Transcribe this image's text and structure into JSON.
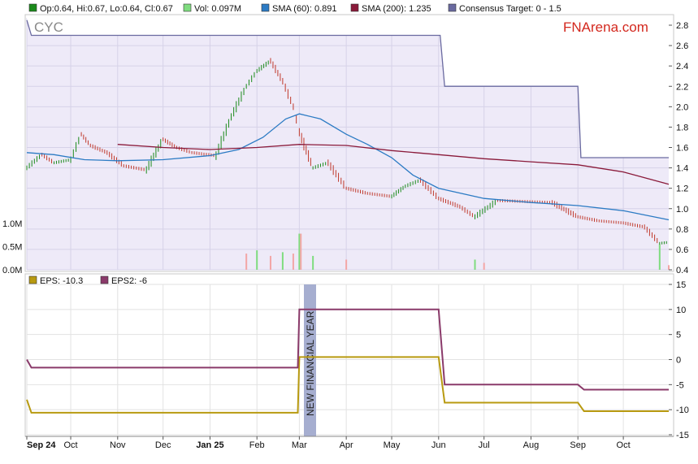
{
  "legend_top": [
    {
      "label": "Op:0.64, Hi:0.67, Lo:0.64, Cl:0.67",
      "color": "#1a8a1a"
    },
    {
      "label": "Vol: 0.097M",
      "color": "#7fdc7f"
    },
    {
      "label": "SMA (60): 0.891",
      "color": "#2c7bc4"
    },
    {
      "label": "SMA (200): 1.235",
      "color": "#8a1a3a"
    },
    {
      "label": "Consensus Target: 0 - 1.5",
      "color": "#6a6aa0"
    }
  ],
  "ticker": "CYC",
  "brand": "FNArena.com",
  "annotation": "NEW FINANCIAL YEAR",
  "legend_bottom": [
    {
      "label": "EPS: -10.3",
      "color": "#b89a10"
    },
    {
      "label": "EPS2: -6",
      "color": "#8a3a6a"
    }
  ],
  "chart_data": [
    {
      "type": "line",
      "title": "CYC",
      "x_axis": {
        "ticks": [
          "Sep 24",
          "Oct",
          "Nov",
          "Dec",
          "Jan 25",
          "Feb",
          "Mar",
          "Apr",
          "May",
          "Jun",
          "Jul",
          "Aug",
          "Sep",
          "Oct"
        ],
        "bold_ticks": [
          "Sep 24",
          "Jan 25"
        ],
        "range": [
          "2024-09-02",
          "2025-10-31"
        ]
      },
      "y_axis": {
        "ticks": [
          "2.8",
          "2.6",
          "2.4",
          "2.2",
          "2.0",
          "1.8",
          "1.6",
          "1.4",
          "1.2",
          "1.0",
          "0.8",
          "0.6",
          "0.4"
        ],
        "range": [
          0.4,
          2.8
        ]
      },
      "volume_axis": {
        "ticks": [
          "1.0M",
          "0.5M",
          "0.0M"
        ],
        "range": [
          0,
          1.0
        ]
      },
      "series": [
        {
          "name": "Consensus Target",
          "points": [
            [
              "2024-09-02",
              2.85
            ],
            [
              "2024-09-05",
              2.7
            ],
            [
              "2025-06-02",
              2.7
            ],
            [
              "2025-06-05",
              2.2
            ],
            [
              "2025-09-01",
              2.2
            ],
            [
              "2025-09-03",
              1.5
            ],
            [
              "2025-10-31",
              1.5
            ]
          ]
        },
        {
          "name": "SMA (60)",
          "points": [
            [
              "2024-09-02",
              1.55
            ],
            [
              "2024-09-20",
              1.53
            ],
            [
              "2024-10-10",
              1.48
            ],
            [
              "2024-11-01",
              1.47
            ],
            [
              "2024-12-01",
              1.48
            ],
            [
              "2025-01-01",
              1.52
            ],
            [
              "2025-01-20",
              1.58
            ],
            [
              "2025-02-05",
              1.7
            ],
            [
              "2025-02-20",
              1.88
            ],
            [
              "2025-03-01",
              1.93
            ],
            [
              "2025-03-15",
              1.88
            ],
            [
              "2025-04-01",
              1.73
            ],
            [
              "2025-04-15",
              1.63
            ],
            [
              "2025-05-01",
              1.5
            ],
            [
              "2025-05-15",
              1.33
            ],
            [
              "2025-06-01",
              1.2
            ],
            [
              "2025-07-01",
              1.1
            ],
            [
              "2025-08-01",
              1.06
            ],
            [
              "2025-09-01",
              1.03
            ],
            [
              "2025-10-01",
              0.98
            ],
            [
              "2025-10-31",
              0.89
            ]
          ]
        },
        {
          "name": "SMA (200)",
          "points": [
            [
              "2024-11-01",
              1.63
            ],
            [
              "2024-12-01",
              1.6
            ],
            [
              "2025-01-01",
              1.58
            ],
            [
              "2025-02-01",
              1.6
            ],
            [
              "2025-03-01",
              1.63
            ],
            [
              "2025-04-01",
              1.62
            ],
            [
              "2025-05-01",
              1.57
            ],
            [
              "2025-06-01",
              1.53
            ],
            [
              "2025-07-01",
              1.49
            ],
            [
              "2025-08-01",
              1.46
            ],
            [
              "2025-09-01",
              1.43
            ],
            [
              "2025-10-01",
              1.36
            ],
            [
              "2025-10-31",
              1.24
            ]
          ]
        },
        {
          "name": "Price",
          "points": [
            [
              "2024-09-02",
              1.4
            ],
            [
              "2024-09-12",
              1.53
            ],
            [
              "2024-09-20",
              1.45
            ],
            [
              "2024-10-01",
              1.48
            ],
            [
              "2024-10-08",
              1.73
            ],
            [
              "2024-10-14",
              1.62
            ],
            [
              "2024-10-25",
              1.55
            ],
            [
              "2024-11-05",
              1.42
            ],
            [
              "2024-11-20",
              1.38
            ],
            [
              "2024-12-01",
              1.68
            ],
            [
              "2024-12-10",
              1.6
            ],
            [
              "2024-12-20",
              1.55
            ],
            [
              "2025-01-05",
              1.52
            ],
            [
              "2025-01-15",
              1.9
            ],
            [
              "2025-01-25",
              2.2
            ],
            [
              "2025-02-01",
              2.35
            ],
            [
              "2025-02-10",
              2.45
            ],
            [
              "2025-02-18",
              2.25
            ],
            [
              "2025-02-25",
              2.0
            ],
            [
              "2025-03-01",
              1.75
            ],
            [
              "2025-03-10",
              1.4
            ],
            [
              "2025-03-20",
              1.45
            ],
            [
              "2025-04-01",
              1.2
            ],
            [
              "2025-04-15",
              1.15
            ],
            [
              "2025-05-01",
              1.12
            ],
            [
              "2025-05-10",
              1.22
            ],
            [
              "2025-05-20",
              1.28
            ],
            [
              "2025-06-01",
              1.1
            ],
            [
              "2025-06-15",
              1.02
            ],
            [
              "2025-06-25",
              0.92
            ],
            [
              "2025-07-10",
              1.08
            ],
            [
              "2025-08-15",
              1.06
            ],
            [
              "2025-09-01",
              0.92
            ],
            [
              "2025-09-15",
              0.88
            ],
            [
              "2025-10-01",
              0.86
            ],
            [
              "2025-10-15",
              0.82
            ],
            [
              "2025-10-25",
              0.66
            ],
            [
              "2025-10-31",
              0.67
            ]
          ]
        }
      ],
      "volume": [
        [
          "2025-01-25",
          0.35
        ],
        [
          "2025-02-01",
          0.42
        ],
        [
          "2025-02-10",
          0.3
        ],
        [
          "2025-02-18",
          0.38
        ],
        [
          "2025-02-25",
          0.35
        ],
        [
          "2025-03-01",
          0.78
        ],
        [
          "2025-03-02",
          0.78
        ],
        [
          "2025-03-10",
          0.3
        ],
        [
          "2025-04-01",
          0.22
        ],
        [
          "2025-06-25",
          0.22
        ],
        [
          "2025-07-01",
          0.15
        ],
        [
          "2025-10-25",
          0.55
        ],
        [
          "2025-10-31",
          0.1
        ]
      ]
    },
    {
      "type": "line",
      "y_axis": {
        "ticks": [
          "15",
          "10",
          "5",
          "0",
          "-5",
          "-10",
          "-15"
        ],
        "range": [
          -15,
          15
        ]
      },
      "series": [
        {
          "name": "EPS",
          "points": [
            [
              "2024-09-02",
              -8.0
            ],
            [
              "2024-09-05",
              -10.6
            ],
            [
              "2025-02-28",
              -10.6
            ],
            [
              "2025-03-01",
              0.5
            ],
            [
              "2025-06-01",
              0.5
            ],
            [
              "2025-06-05",
              -8.6
            ],
            [
              "2025-09-01",
              -8.6
            ],
            [
              "2025-09-05",
              -10.3
            ],
            [
              "2025-10-31",
              -10.3
            ]
          ]
        },
        {
          "name": "EPS2",
          "points": [
            [
              "2024-09-02",
              0.0
            ],
            [
              "2024-09-05",
              -1.6
            ],
            [
              "2025-02-28",
              -1.6
            ],
            [
              "2025-03-01",
              10.0
            ],
            [
              "2025-06-01",
              10.0
            ],
            [
              "2025-06-05",
              -5.0
            ],
            [
              "2025-09-01",
              -5.0
            ],
            [
              "2025-09-05",
              -6.0
            ],
            [
              "2025-10-31",
              -6.0
            ]
          ]
        }
      ]
    }
  ],
  "colors": {
    "price_up": "#1a8a1a",
    "price_down": "#c0392b",
    "volume": "#7fdc7f",
    "volume_down": "#f3a6a6",
    "plot_bg": "#eeeaf8",
    "annotation_band": "#a6aed0"
  }
}
